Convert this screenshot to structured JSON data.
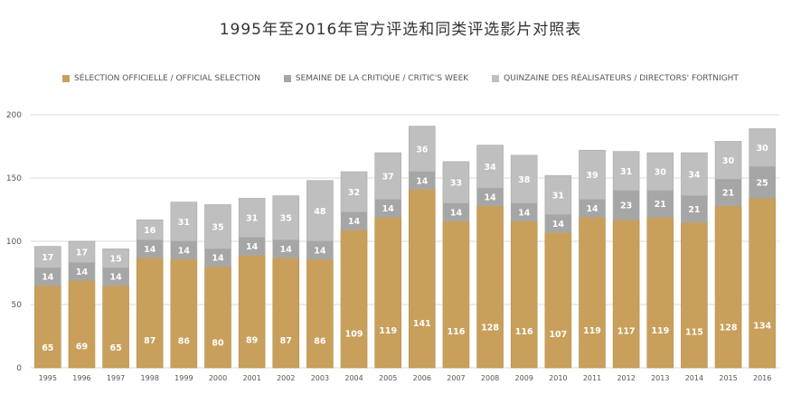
{
  "chart_data": {
    "type": "bar",
    "stacked": true,
    "title": "1995年至2016年官方评选和同类评选影片对照表",
    "xlabel": "",
    "ylabel": "",
    "ylim": [
      0,
      200
    ],
    "yticks": [
      0,
      50,
      100,
      150,
      200
    ],
    "grid": true,
    "legend_position": "top",
    "categories": [
      "1995",
      "1996",
      "1997",
      "1998",
      "1999",
      "2000",
      "2001",
      "2002",
      "2003",
      "2004",
      "2005",
      "2006",
      "2007",
      "2008",
      "2009",
      "2010",
      "2011",
      "2012",
      "2013",
      "2014",
      "2015",
      "2016"
    ],
    "series": [
      {
        "name": "SÉLECTION OFFICIELLE / OFFICIAL SELECTION",
        "color": "#c8a05c",
        "values": [
          65,
          69,
          65,
          87,
          86,
          80,
          89,
          87,
          86,
          109,
          119,
          141,
          116,
          128,
          116,
          107,
          119,
          117,
          119,
          115,
          128,
          134
        ]
      },
      {
        "name": "SEMAINE DE LA CRITIQUE / CRITIC'S WEEK",
        "color": "#a6a6a6",
        "values": [
          14,
          14,
          14,
          14,
          14,
          14,
          14,
          14,
          14,
          14,
          14,
          14,
          14,
          14,
          14,
          14,
          14,
          23,
          21,
          21,
          21,
          25
        ]
      },
      {
        "name": "QUINZAINE DES RÉALISATEURS / DIRECTORS' FORTNIGHT",
        "color": "#bfbfbf",
        "values": [
          17,
          17,
          15,
          16,
          31,
          35,
          31,
          35,
          48,
          32,
          37,
          36,
          33,
          34,
          38,
          31,
          39,
          31,
          30,
          34,
          30,
          30
        ]
      }
    ]
  }
}
